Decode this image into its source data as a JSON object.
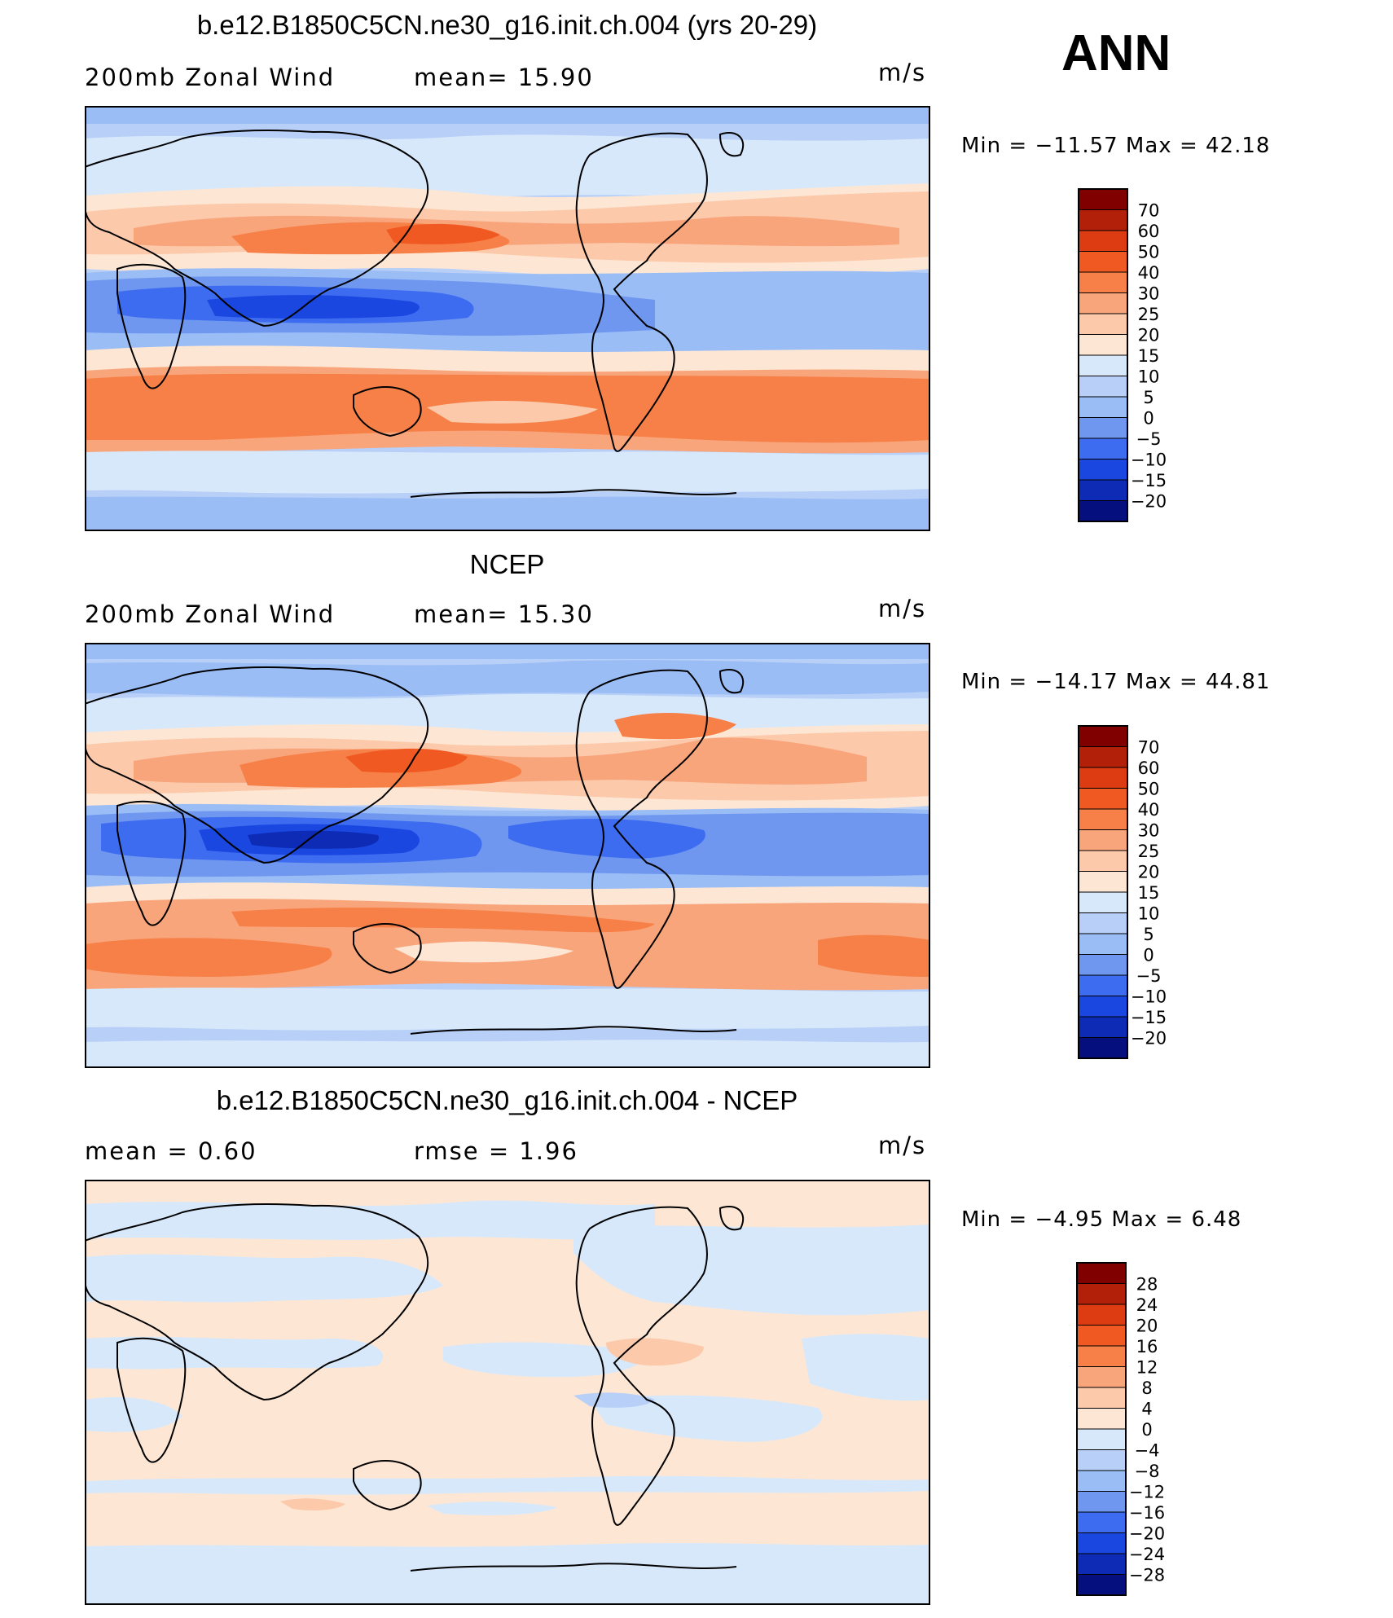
{
  "season": "ANN",
  "panels": [
    {
      "title": "b.e12.B1850C5CN.ne30_g16.init.ch.004 (yrs 20-29)",
      "left_label": "200mb  Zonal  Wind",
      "mid_label": "mean=   15.90",
      "units": "m/s",
      "stats": "Min  =  −11.57  Max  =    42.18"
    },
    {
      "title": "NCEP",
      "left_label": "200mb  Zonal  Wind",
      "mid_label": "mean=   15.30",
      "units": "m/s",
      "stats": "Min  =  −14.17  Max  =    44.81"
    },
    {
      "title": "b.e12.B1850C5CN.ne30_g16.init.ch.004 - NCEP",
      "left_label": "mean  =     0.60",
      "mid_label": "rmse  =     1.96",
      "units": "m/s",
      "stats": "Min  =    −4.95  Max  =     6.48"
    }
  ],
  "chart_data": [
    {
      "type": "heatmap",
      "title": "b.e12.B1850C5CN.ne30_g16.init.ch.004 (yrs 20-29)",
      "variable": "200mb Zonal Wind",
      "units": "m/s",
      "mean": 15.9,
      "min": -11.57,
      "max": 42.18,
      "colorbar_levels": [
        70,
        60,
        50,
        40,
        30,
        25,
        20,
        15,
        10,
        5,
        0,
        -5,
        -10,
        -15,
        -20
      ],
      "colorbar_colors": [
        "#800000",
        "#b2200a",
        "#dd3c12",
        "#f05a22",
        "#f68047",
        "#f9a57c",
        "#fcc9ab",
        "#fde7d4",
        "#d8e8fb",
        "#b8d0f7",
        "#9abdf6",
        "#6f97f0",
        "#3d6cf0",
        "#1a47e0",
        "#0d2bb4",
        "#05107e"
      ],
      "map": "global cylindrical equidistant, 0E center-left to 360E",
      "features": [
        "subtropical jets ~30-35N and ~30-40S (25-40 m/s)",
        "tropical easterlies over Indian Ocean / Maritime Continent (-10 to -15 m/s)",
        "weak flow at high latitudes"
      ]
    },
    {
      "type": "heatmap",
      "title": "NCEP",
      "variable": "200mb Zonal Wind",
      "units": "m/s",
      "mean": 15.3,
      "min": -14.17,
      "max": 44.81,
      "colorbar_levels": [
        70,
        60,
        50,
        40,
        30,
        25,
        20,
        15,
        10,
        5,
        0,
        -5,
        -10,
        -15,
        -20
      ],
      "colorbar_colors": [
        "#800000",
        "#b2200a",
        "#dd3c12",
        "#f05a22",
        "#f68047",
        "#f9a57c",
        "#fcc9ab",
        "#fde7d4",
        "#d8e8fb",
        "#b8d0f7",
        "#9abdf6",
        "#6f97f0",
        "#3d6cf0",
        "#1a47e0",
        "#0d2bb4",
        "#05107e"
      ],
      "map": "global cylindrical equidistant",
      "features": [
        "Asian jet core ~40-45 m/s near Japan",
        "strong easterlies over Maritime Continent and eastern Pacific",
        "southern hemisphere jet ~30-40 m/s"
      ]
    },
    {
      "type": "heatmap",
      "title": "b.e12.B1850C5CN.ne30_g16.init.ch.004 - NCEP",
      "variable": "200mb Zonal Wind difference",
      "units": "m/s",
      "mean": 0.6,
      "rmse": 1.96,
      "min": -4.95,
      "max": 6.48,
      "colorbar_levels": [
        28,
        24,
        20,
        16,
        12,
        8,
        4,
        0,
        -4,
        -8,
        -12,
        -16,
        -20,
        -24,
        -28
      ],
      "colorbar_colors": [
        "#800000",
        "#b2200a",
        "#dd3c12",
        "#f05a22",
        "#f68047",
        "#f9a57c",
        "#fcc9ab",
        "#fde7d4",
        "#d8e8fb",
        "#b8d0f7",
        "#9abdf6",
        "#6f97f0",
        "#3d6cf0",
        "#1a47e0",
        "#0d2bb4",
        "#05107e"
      ],
      "map": "global cylindrical equidistant",
      "features": [
        "mostly within -4 to +4 m/s",
        "small positive patches (4-8) near Central America",
        "small negative patches (-4 to -8) central Pacific"
      ]
    }
  ]
}
